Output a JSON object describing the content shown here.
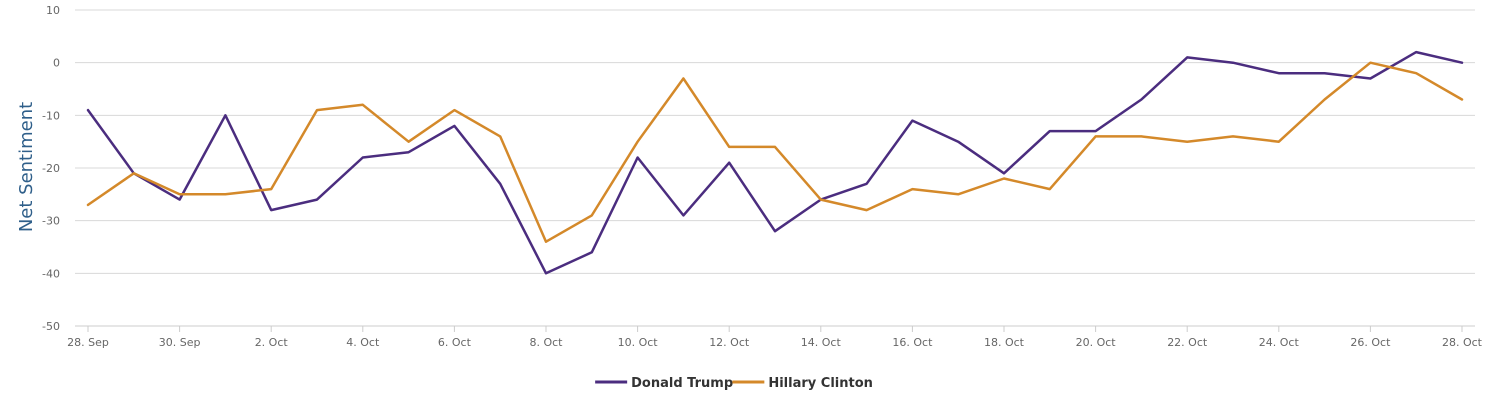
{
  "chart_data": {
    "type": "line",
    "ylabel": "Net Sentiment",
    "ylim": [
      -50,
      10
    ],
    "yticks": [
      10,
      0,
      -10,
      -20,
      -30,
      -40,
      -50
    ],
    "grid": true,
    "legend_position": "bottom-center",
    "x": [
      "28. Sep",
      "29. Sep",
      "30. Sep",
      "1. Oct",
      "2. Oct",
      "3. Oct",
      "4. Oct",
      "5. Oct",
      "6. Oct",
      "7. Oct",
      "8. Oct",
      "9. Oct",
      "10. Oct",
      "11. Oct",
      "12. Oct",
      "13. Oct",
      "14. Oct",
      "15. Oct",
      "16. Oct",
      "17. Oct",
      "18. Oct",
      "19. Oct",
      "20. Oct",
      "21. Oct",
      "22. Oct",
      "23. Oct",
      "24. Oct",
      "25. Oct",
      "26. Oct",
      "27. Oct",
      "28. Oct"
    ],
    "xtick_labels": [
      "28. Sep",
      "30. Sep",
      "2. Oct",
      "4. Oct",
      "6. Oct",
      "8. Oct",
      "10. Oct",
      "12. Oct",
      "14. Oct",
      "16. Oct",
      "18. Oct",
      "20. Oct",
      "22. Oct",
      "24. Oct",
      "26. Oct",
      "28. Oct"
    ],
    "series": [
      {
        "name": "Donald Trump",
        "color": "#4b2d7f",
        "values": [
          -9,
          -21,
          -26,
          -10,
          -28,
          -26,
          -18,
          -17,
          -12,
          -23,
          -40,
          -36,
          -18,
          -29,
          -19,
          -32,
          -26,
          -23,
          -11,
          -15,
          -21,
          -13,
          -13,
          -7,
          1,
          0,
          -2,
          -2,
          -3,
          2,
          0
        ]
      },
      {
        "name": "Hillary Clinton",
        "color": "#d4892a",
        "values": [
          -27,
          -21,
          -25,
          -25,
          -24,
          -9,
          -8,
          -15,
          -9,
          -14,
          -34,
          -29,
          -15,
          -3,
          -16,
          -16,
          -26,
          -28,
          -24,
          -25,
          -22,
          -24,
          -14,
          -14,
          -15,
          -14,
          -15,
          -7,
          0,
          -2,
          -7
        ]
      }
    ]
  }
}
